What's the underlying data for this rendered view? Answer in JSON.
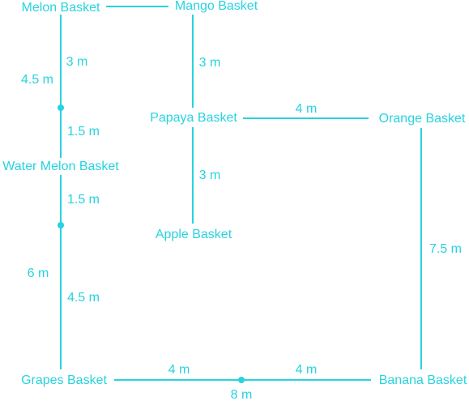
{
  "nodes": [
    "Melon Basket",
    "Mango Basket",
    "Papaya Basket",
    "Orange Basket",
    "Water Melon Basket",
    "Apple Basket",
    "Grapes Basket",
    "Banana Basket"
  ],
  "distances": [
    "3 m",
    "4.5 m",
    "1.5 m",
    "1.5 m",
    "6 m",
    "4.5 m",
    "3 m",
    "4 m",
    "3 m",
    "7.5 m",
    "4 m",
    "4 m",
    "8 m"
  ]
}
